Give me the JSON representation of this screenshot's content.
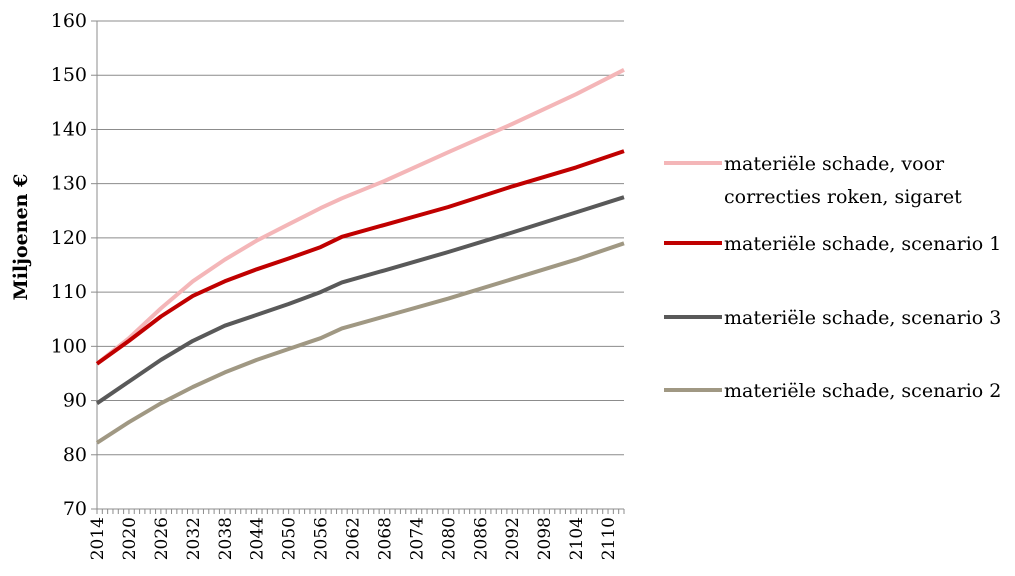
{
  "chart_data": {
    "type": "line",
    "title": "",
    "xlabel": "",
    "ylabel": "Miljoenen €",
    "ylim": [
      70,
      160
    ],
    "yticks": [
      70,
      80,
      90,
      100,
      110,
      120,
      130,
      140,
      150,
      160
    ],
    "xlim": [
      2014,
      2113
    ],
    "xticks": [
      2014,
      2020,
      2026,
      2032,
      2038,
      2044,
      2050,
      2056,
      2062,
      2068,
      2074,
      2080,
      2086,
      2092,
      2098,
      2104,
      2110
    ],
    "grid": "horizontal",
    "legend": "right",
    "series": [
      {
        "name_lines": [
          "materiële schade, voor",
          "correcties roken, sigaret"
        ],
        "color": "#f4b6b8",
        "x": [
          2014,
          2020,
          2026,
          2032,
          2038,
          2044,
          2050,
          2056,
          2060,
          2068,
          2080,
          2092,
          2104,
          2113
        ],
        "values": [
          96.8,
          101.5,
          107,
          112,
          116,
          119.5,
          122.5,
          125.5,
          127.3,
          130.5,
          135.8,
          141,
          146.5,
          151
        ]
      },
      {
        "name_lines": [
          "materiële schade, scenario 1"
        ],
        "color": "#c00000",
        "x": [
          2014,
          2020,
          2026,
          2032,
          2038,
          2044,
          2050,
          2056,
          2060,
          2068,
          2080,
          2092,
          2104,
          2113
        ],
        "values": [
          96.8,
          101,
          105.5,
          109.3,
          112,
          114.2,
          116.2,
          118.3,
          120.2,
          122.4,
          125.7,
          129.5,
          133,
          136
        ]
      },
      {
        "name_lines": [
          "materiële schade, scenario 3"
        ],
        "color": "#595959",
        "x": [
          2014,
          2020,
          2026,
          2032,
          2038,
          2044,
          2050,
          2056,
          2060,
          2068,
          2080,
          2092,
          2104,
          2113
        ],
        "values": [
          89.5,
          93.5,
          97.5,
          101,
          103.8,
          105.8,
          107.8,
          110,
          111.8,
          114,
          117.4,
          121,
          124.7,
          127.5
        ]
      },
      {
        "name_lines": [
          "materiële schade, scenario 2"
        ],
        "color": "#a09883",
        "x": [
          2014,
          2020,
          2026,
          2032,
          2038,
          2044,
          2050,
          2056,
          2060,
          2068,
          2080,
          2092,
          2104,
          2113
        ],
        "values": [
          82.2,
          86,
          89.5,
          92.5,
          95.2,
          97.5,
          99.5,
          101.5,
          103.3,
          105.5,
          108.8,
          112.4,
          116,
          119
        ]
      }
    ]
  }
}
